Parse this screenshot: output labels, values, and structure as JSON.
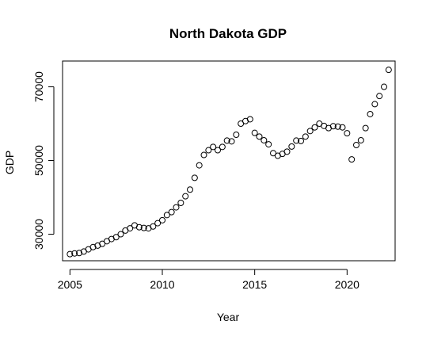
{
  "chart_data": {
    "type": "scatter",
    "title": "North Dakota GDP",
    "xlabel": "Year",
    "ylabel": "GDP",
    "xlim": [
      2004.6,
      2022.6
    ],
    "ylim": [
      22800,
      77000
    ],
    "x_ticks": [
      2005,
      2010,
      2015,
      2020
    ],
    "y_ticks": [
      30000,
      50000,
      70000
    ],
    "grid": false,
    "legend": "none",
    "marker": "open-circle",
    "x": [
      2005.0,
      2005.25,
      2005.5,
      2005.75,
      2006.0,
      2006.25,
      2006.5,
      2006.75,
      2007.0,
      2007.25,
      2007.5,
      2007.75,
      2008.0,
      2008.25,
      2008.5,
      2008.75,
      2009.0,
      2009.25,
      2009.5,
      2009.75,
      2010.0,
      2010.25,
      2010.5,
      2010.75,
      2011.0,
      2011.25,
      2011.5,
      2011.75,
      2012.0,
      2012.25,
      2012.5,
      2012.75,
      2013.0,
      2013.25,
      2013.5,
      2013.75,
      2014.0,
      2014.25,
      2014.5,
      2014.75,
      2015.0,
      2015.25,
      2015.5,
      2015.75,
      2016.0,
      2016.25,
      2016.5,
      2016.75,
      2017.0,
      2017.25,
      2017.5,
      2017.75,
      2018.0,
      2018.25,
      2018.5,
      2018.75,
      2019.0,
      2019.25,
      2019.5,
      2019.75,
      2020.0,
      2020.25,
      2020.5,
      2020.75,
      2021.0,
      2021.25,
      2021.5,
      2021.75,
      2022.0,
      2022.25
    ],
    "y": [
      24600,
      24800,
      24900,
      25300,
      25900,
      26500,
      26900,
      27400,
      28100,
      28700,
      29200,
      30000,
      31000,
      31600,
      32400,
      31900,
      31700,
      31600,
      32100,
      33000,
      33800,
      35200,
      36000,
      37300,
      38500,
      40300,
      42100,
      45300,
      48700,
      51500,
      52800,
      53700,
      52800,
      53700,
      55400,
      55200,
      57000,
      60000,
      60700,
      61200,
      57500,
      56500,
      55500,
      54400,
      52000,
      51300,
      51800,
      52400,
      53800,
      55400,
      55300,
      56500,
      58000,
      59000,
      60000,
      59400,
      58800,
      59300,
      59200,
      59000,
      57400,
      50300,
      54200,
      55500,
      58800,
      62600,
      65300,
      67500,
      70000,
      74600
    ]
  }
}
